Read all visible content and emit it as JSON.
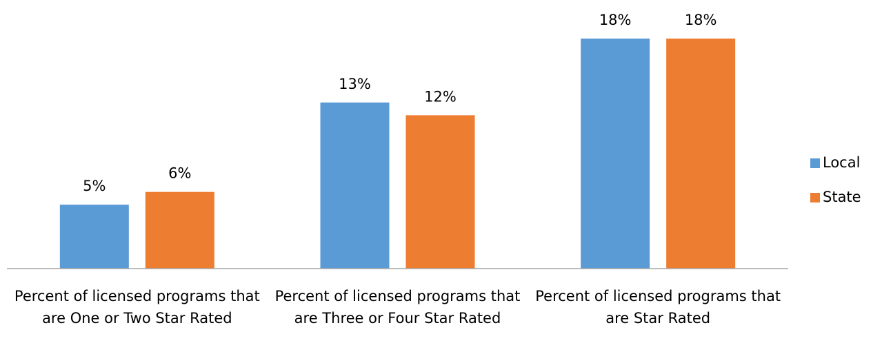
{
  "chart_data": {
    "type": "bar",
    "categories": [
      "Percent of licensed programs that are One or Two Star Rated",
      "Percent of licensed programs that are Three or Four Star Rated",
      "Percent of licensed programs that are Star Rated"
    ],
    "series": [
      {
        "name": "Local",
        "color": "#5b9bd5",
        "values": [
          5,
          13,
          18
        ],
        "value_labels": [
          "5%",
          "13%",
          "18%"
        ]
      },
      {
        "name": "State",
        "color": "#ed7d31",
        "values": [
          6,
          12,
          18
        ],
        "value_labels": [
          "6%",
          "12%",
          "18%"
        ]
      }
    ],
    "ylim": [
      0,
      18
    ],
    "legend": "right"
  }
}
